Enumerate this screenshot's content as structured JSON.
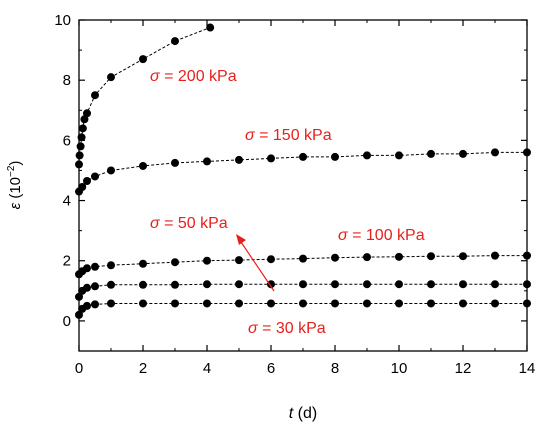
{
  "chart_data": {
    "type": "line",
    "xlabel_symbol": "t",
    "xlabel_unit": " (d)",
    "ylabel_symbol": "ε",
    "ylabel_unit_base": " (10",
    "ylabel_unit_exp": "−2",
    "ylabel_unit_close": ")",
    "xlim": [
      0,
      14
    ],
    "ylim": [
      -1,
      10
    ],
    "x_ticks": [
      0,
      2,
      4,
      6,
      8,
      10,
      12,
      14
    ],
    "y_ticks": [
      0,
      2,
      4,
      6,
      8,
      10
    ],
    "grid": false,
    "annotation_color": "#e8201c",
    "series": [
      {
        "label_symbol": "σ",
        "label_text": " = 200 kPa",
        "x": [
          0.0,
          0.02,
          0.05,
          0.08,
          0.12,
          0.17,
          0.25,
          0.5,
          1.0,
          2.0,
          3.0,
          4.1
        ],
        "y": [
          5.2,
          5.5,
          5.8,
          6.1,
          6.4,
          6.7,
          6.9,
          7.5,
          8.1,
          8.7,
          9.3,
          9.75
        ]
      },
      {
        "label_symbol": "σ",
        "label_text": " = 150 kPa",
        "x": [
          0.0,
          0.1,
          0.25,
          0.5,
          1,
          2,
          3,
          4,
          5,
          6,
          7,
          8,
          9,
          10,
          11,
          12,
          13,
          14
        ],
        "y": [
          4.3,
          4.45,
          4.65,
          4.8,
          5.0,
          5.15,
          5.25,
          5.3,
          5.35,
          5.4,
          5.45,
          5.45,
          5.5,
          5.5,
          5.55,
          5.55,
          5.6,
          5.6
        ]
      },
      {
        "label_symbol": "σ",
        "label_text": " = 100 kPa",
        "x": [
          0.0,
          0.1,
          0.25,
          0.5,
          1,
          2,
          3,
          4,
          5,
          6,
          7,
          8,
          9,
          10,
          11,
          12,
          13,
          14
        ],
        "y": [
          1.55,
          1.65,
          1.75,
          1.8,
          1.85,
          1.9,
          1.95,
          2.0,
          2.02,
          2.05,
          2.07,
          2.1,
          2.12,
          2.13,
          2.15,
          2.15,
          2.17,
          2.17
        ]
      },
      {
        "label_symbol": "σ",
        "label_text": " = 50 kPa",
        "x": [
          0.0,
          0.1,
          0.25,
          0.5,
          1,
          2,
          3,
          4,
          5,
          6,
          7,
          8,
          9,
          10,
          11,
          12,
          13,
          14
        ],
        "y": [
          0.8,
          1.0,
          1.1,
          1.15,
          1.2,
          1.2,
          1.2,
          1.22,
          1.22,
          1.22,
          1.22,
          1.22,
          1.22,
          1.22,
          1.22,
          1.22,
          1.22,
          1.22
        ]
      },
      {
        "label_symbol": "σ",
        "label_text": " = 30 kPa",
        "x": [
          0.0,
          0.1,
          0.25,
          0.5,
          1,
          2,
          3,
          4,
          5,
          6,
          7,
          8,
          9,
          10,
          11,
          12,
          13,
          14
        ],
        "y": [
          0.2,
          0.4,
          0.5,
          0.55,
          0.58,
          0.58,
          0.58,
          0.58,
          0.58,
          0.58,
          0.58,
          0.58,
          0.58,
          0.58,
          0.58,
          0.58,
          0.58,
          0.58
        ]
      }
    ]
  }
}
